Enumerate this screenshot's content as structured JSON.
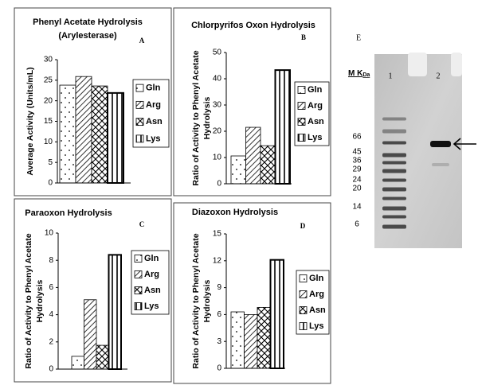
{
  "chart_data": [
    {
      "type": "bar",
      "title": "Phenyl Acetate Hydrolysis",
      "subtitle": "(Arylesterase)",
      "panel_label": "A",
      "ylabel": [
        "Average  Activity (Units/mL)"
      ],
      "ylim": [
        0,
        30
      ],
      "yticks": [
        0,
        5,
        10,
        15,
        20,
        25,
        30
      ],
      "series": [
        {
          "name": "Gln",
          "color": "#000000",
          "pattern": "dots",
          "values": [
            23.8
          ]
        },
        {
          "name": "Arg",
          "color": "#000000",
          "pattern": "diagonal",
          "values": [
            25.9
          ]
        },
        {
          "name": "Asn",
          "color": "#000000",
          "pattern": "cross",
          "values": [
            23.6
          ]
        },
        {
          "name": "Lys",
          "color": "#000000",
          "pattern": "vertical",
          "values": [
            21.9
          ]
        }
      ]
    },
    {
      "type": "bar",
      "title": "Chlorpyrifos Oxon Hydrolysis",
      "panel_label": "B",
      "ylabel": [
        "Ratio of Activity to Phenyl Acetate",
        "Hydrolysis"
      ],
      "ylim": [
        0,
        50
      ],
      "yticks": [
        0,
        10,
        20,
        30,
        40,
        50
      ],
      "series": [
        {
          "name": "Gln",
          "color": "#000000",
          "pattern": "dots",
          "values": [
            10.6
          ]
        },
        {
          "name": "Arg",
          "color": "#000000",
          "pattern": "diagonal",
          "values": [
            21.5
          ]
        },
        {
          "name": "Asn",
          "color": "#000000",
          "pattern": "cross",
          "values": [
            14.5
          ]
        },
        {
          "name": "Lys",
          "color": "#000000",
          "pattern": "vertical",
          "values": [
            43.3
          ]
        }
      ]
    },
    {
      "type": "bar",
      "title": "Paraoxon Hydrolysis",
      "panel_label": "C",
      "ylabel": [
        "Ratio of Activity to Phenyl Acetate",
        "Hydrolysis"
      ],
      "ylim": [
        0,
        10
      ],
      "yticks": [
        0,
        2,
        4,
        6,
        8,
        10
      ],
      "series": [
        {
          "name": "Gln",
          "color": "#000000",
          "pattern": "dots",
          "values": [
            0.94
          ]
        },
        {
          "name": "Arg",
          "color": "#000000",
          "pattern": "diagonal",
          "values": [
            5.1
          ]
        },
        {
          "name": "Asn",
          "color": "#000000",
          "pattern": "cross",
          "values": [
            1.75
          ]
        },
        {
          "name": "Lys",
          "color": "#000000",
          "pattern": "vertical",
          "values": [
            8.4
          ]
        }
      ]
    },
    {
      "type": "bar",
      "title": "Diazoxon Hydrolysis",
      "panel_label": "D",
      "ylabel": [
        "Ratio of Activity to Phenyl Acetate",
        "Hydrolysis"
      ],
      "ylim": [
        0,
        15
      ],
      "yticks": [
        0,
        3,
        6,
        9,
        12,
        15
      ],
      "series": [
        {
          "name": "Gln",
          "color": "#000000",
          "pattern": "dots",
          "values": [
            6.3
          ]
        },
        {
          "name": "Arg",
          "color": "#000000",
          "pattern": "diagonal",
          "values": [
            6.0
          ]
        },
        {
          "name": "Asn",
          "color": "#000000",
          "pattern": "cross",
          "values": [
            6.8
          ]
        },
        {
          "name": "Lys",
          "color": "#000000",
          "pattern": "vertical",
          "values": [
            12.1
          ]
        }
      ]
    }
  ],
  "gel": {
    "label": "E",
    "marker_header": "M K",
    "marker_unit": "Da",
    "lanes": [
      "1",
      "2"
    ],
    "markers": [
      66,
      45,
      36,
      29,
      24,
      20,
      14,
      6
    ]
  }
}
